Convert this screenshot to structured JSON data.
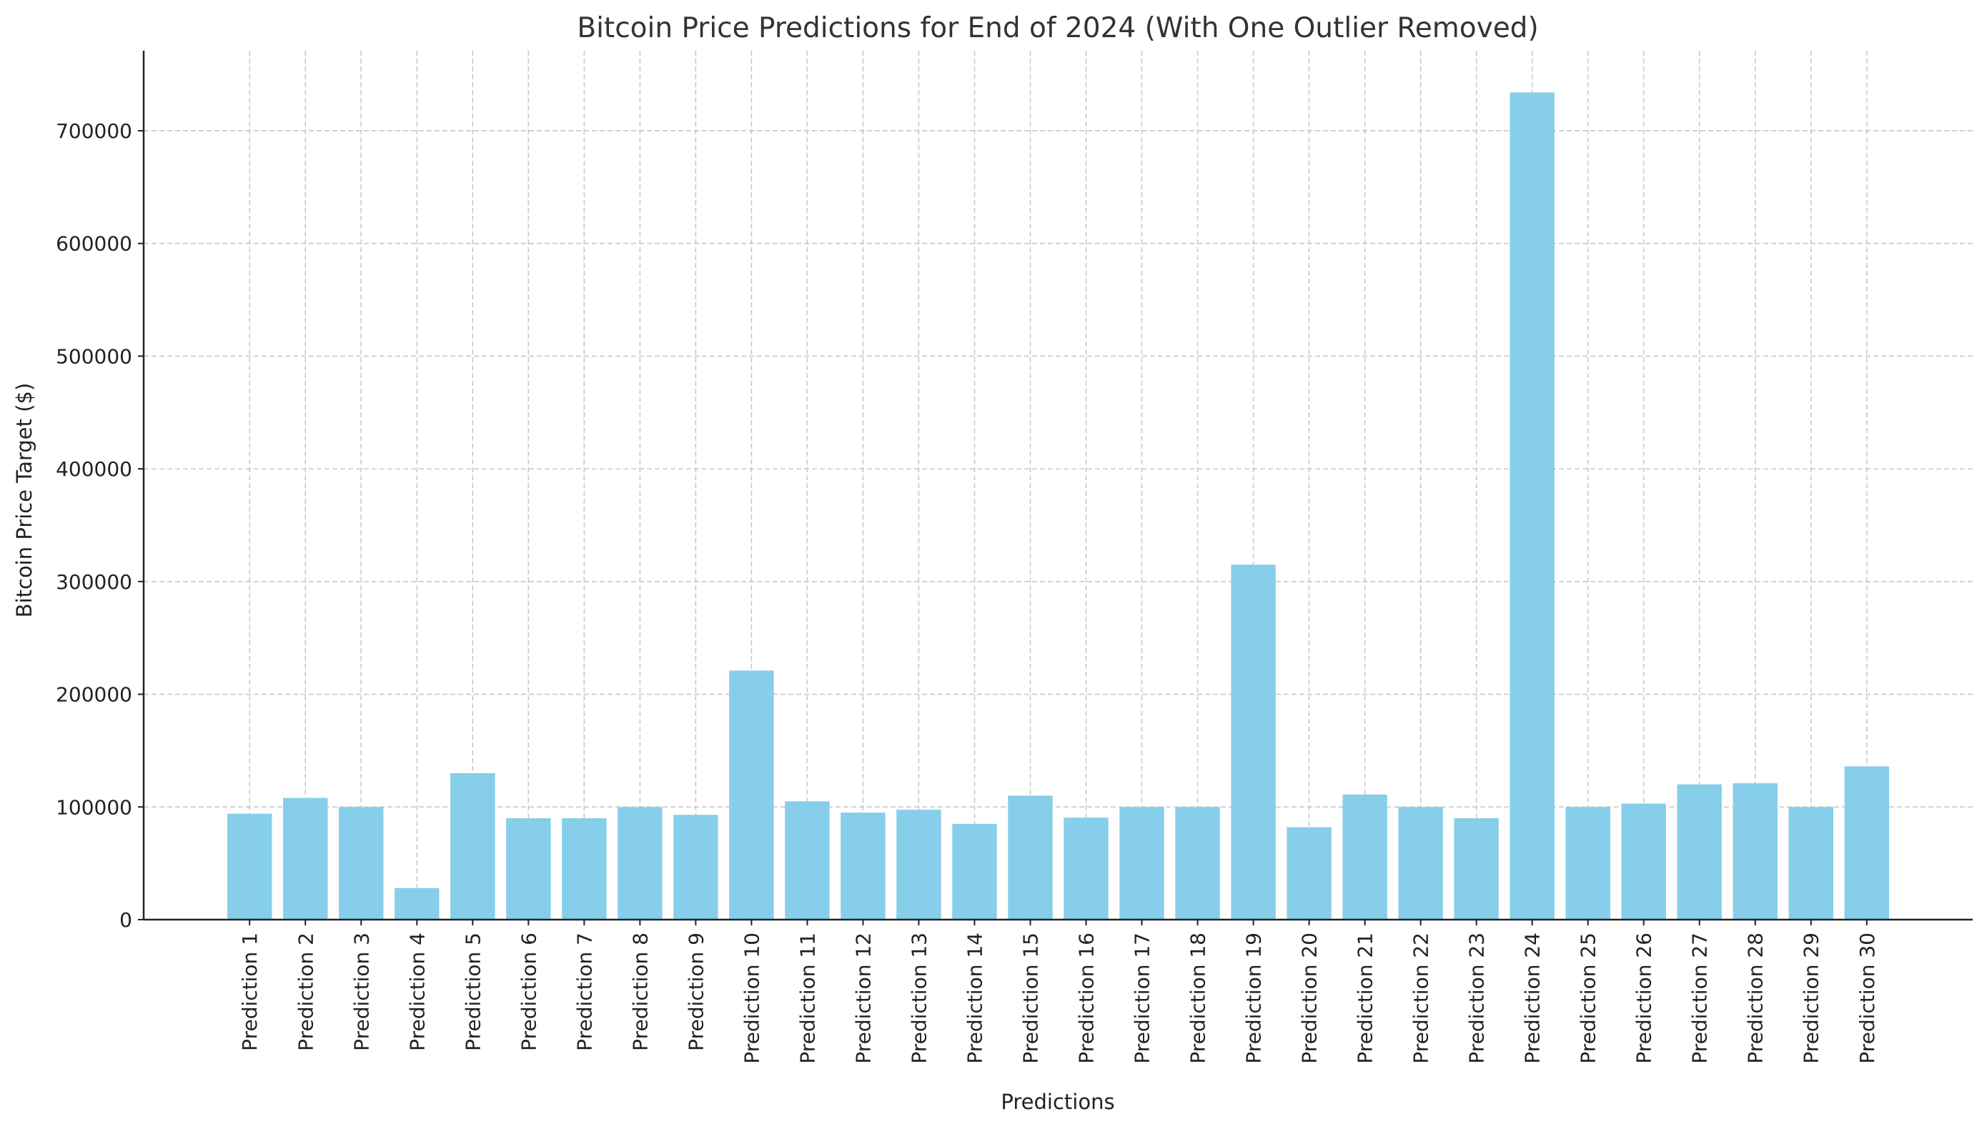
{
  "chart_data": {
    "type": "bar",
    "title": "Bitcoin Price Predictions for End of 2024 (With One Outlier Removed)",
    "xlabel": "Predictions",
    "ylabel": "Bitcoin Price Target ($)",
    "categories": [
      "Prediction 1",
      "Prediction 2",
      "Prediction 3",
      "Prediction 4",
      "Prediction 5",
      "Prediction 6",
      "Prediction 7",
      "Prediction 8",
      "Prediction 9",
      "Prediction 10",
      "Prediction 11",
      "Prediction 12",
      "Prediction 13",
      "Prediction 14",
      "Prediction 15",
      "Prediction 16",
      "Prediction 17",
      "Prediction 18",
      "Prediction 19",
      "Prediction 20",
      "Prediction 21",
      "Prediction 22",
      "Prediction 23",
      "Prediction 24",
      "Prediction 25",
      "Prediction 26",
      "Prediction 27",
      "Prediction 28",
      "Prediction 29",
      "Prediction 30"
    ],
    "values": [
      94000,
      108000,
      100000,
      28000,
      130000,
      90000,
      90000,
      100000,
      93000,
      221000,
      105000,
      95000,
      97500,
      85000,
      110000,
      90500,
      100000,
      100000,
      315000,
      82000,
      111000,
      100000,
      90000,
      734000,
      100000,
      103000,
      120000,
      121000,
      100000,
      136000
    ],
    "yticks": [
      0,
      100000,
      200000,
      300000,
      400000,
      500000,
      600000,
      700000
    ],
    "ytick_labels": [
      "0",
      "100000",
      "200000",
      "300000",
      "400000",
      "500000",
      "600000",
      "700000"
    ],
    "ylim": [
      0,
      771000
    ],
    "grid": true,
    "bar_color": "#87CEEB"
  }
}
